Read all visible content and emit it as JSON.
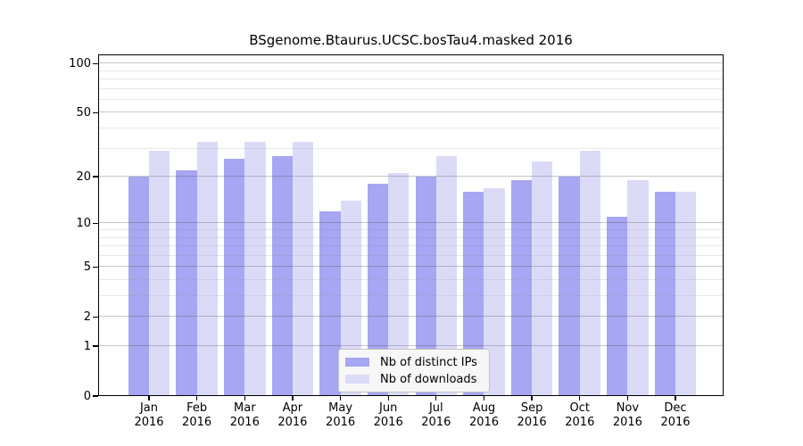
{
  "chart_data": {
    "type": "bar",
    "title": "BSgenome.Btaurus.UCSC.bosTau4.masked 2016",
    "y_scale": "log10(value+1)",
    "categories": [
      "Jan",
      "Feb",
      "Mar",
      "Apr",
      "May",
      "Jun",
      "Jul",
      "Aug",
      "Sep",
      "Oct",
      "Nov",
      "Dec"
    ],
    "x_tick_year": "2016",
    "series": [
      {
        "name": "Nb of distinct IPs",
        "color": "#a6a6f2",
        "values": [
          20,
          22,
          26,
          27,
          12,
          18,
          20,
          16,
          19,
          20,
          11,
          16
        ]
      },
      {
        "name": "Nb of downloads",
        "color": "#dbdbf8",
        "values": [
          29,
          33,
          33,
          33,
          14,
          21,
          27,
          17,
          25,
          29,
          19,
          16
        ]
      }
    ],
    "y_axis": {
      "labeled_ticks": [
        100,
        50,
        20,
        10,
        5,
        2,
        1,
        0
      ],
      "minor_gridlines": [
        3,
        4,
        6,
        7,
        8,
        9,
        30,
        40,
        60,
        70,
        80,
        90
      ],
      "ylim": [
        0,
        113
      ]
    },
    "grid": true,
    "legend_position": "bottom-center",
    "xlabel": "",
    "ylabel": ""
  }
}
